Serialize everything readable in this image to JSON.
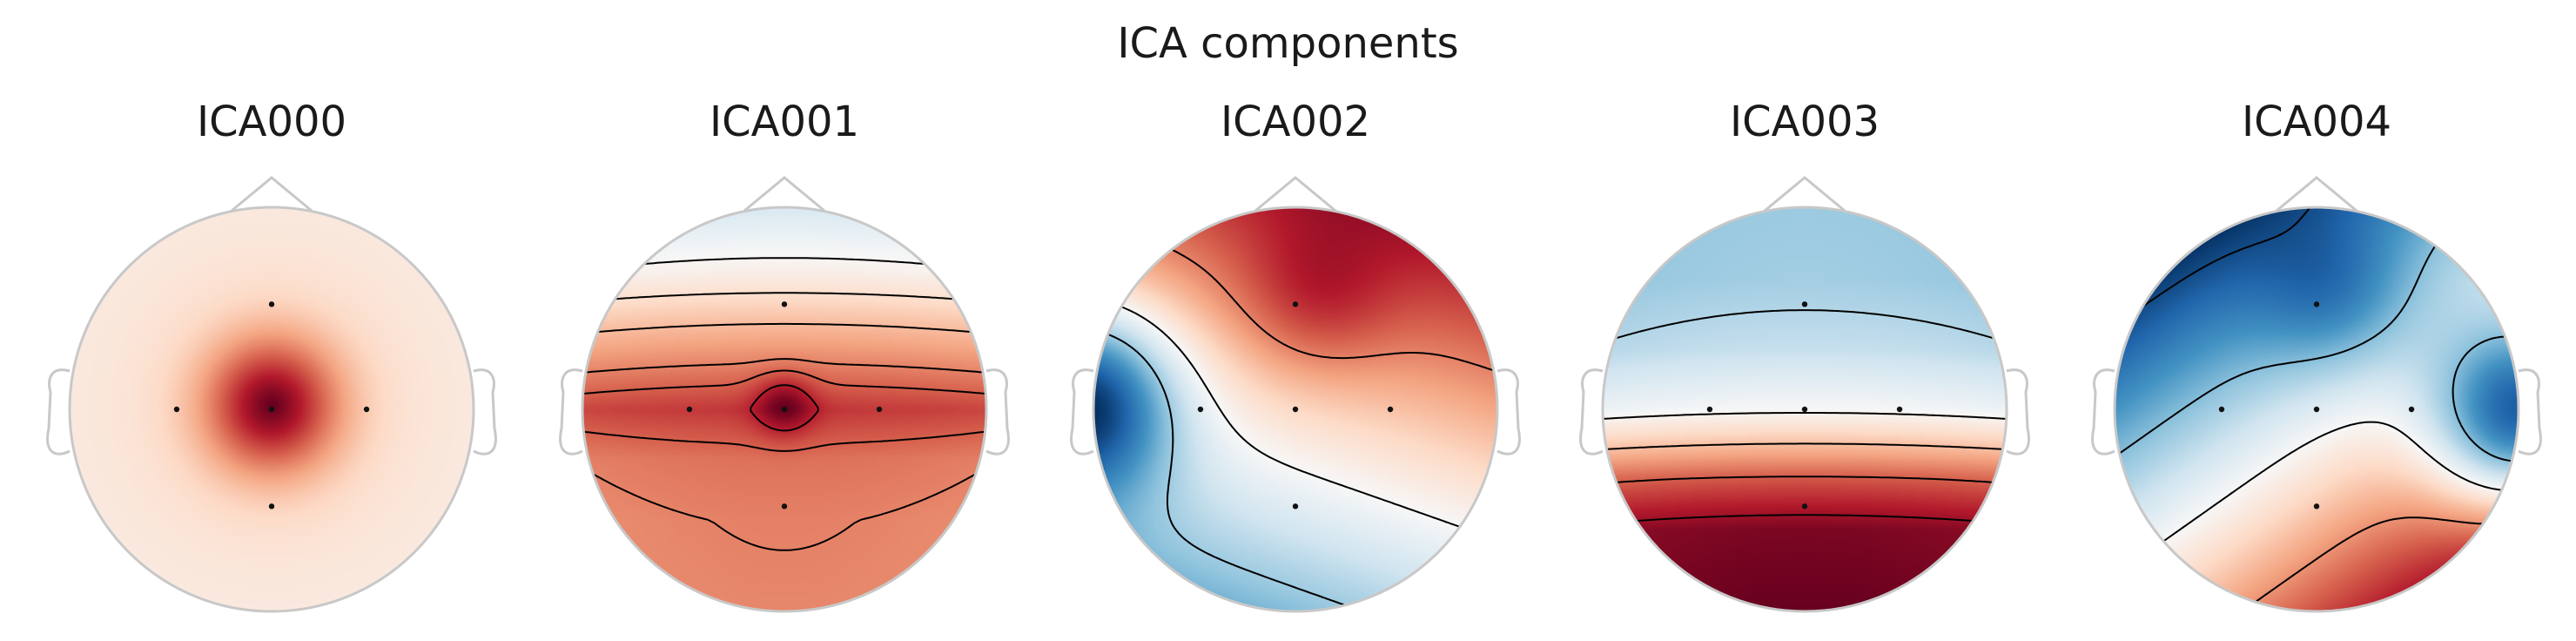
{
  "figure_title": "ICA components",
  "colors": {
    "negative": "#053061",
    "neutral": "#f7f7f7",
    "positive": "#67001f",
    "head_outline": "#c8c8c8",
    "contour": "#000000"
  },
  "colormap": "RdBu_r",
  "chart_data": {
    "type": "topomap",
    "title": "ICA components",
    "sensor_positions": [
      [
        0.0,
        0.52
      ],
      [
        -0.47,
        0.0
      ],
      [
        0.0,
        0.0
      ],
      [
        0.47,
        0.0
      ],
      [
        0.0,
        -0.48
      ]
    ],
    "components": [
      {
        "name": "ICA000",
        "kind": "point",
        "source": [
          0.0,
          0.02
        ],
        "strength": 5.0,
        "bias": 0.96,
        "contours_solid": [
          1.3,
          1.55,
          1.8,
          2.05,
          2.3
        ],
        "contours_dashed": []
      },
      {
        "name": "ICA001",
        "kind": "profile",
        "profile_y": [
          -1.0,
          -0.55,
          -0.25,
          0.0,
          0.22,
          0.45,
          0.68,
          1.0
        ],
        "profile_v": [
          0.58,
          0.6,
          0.65,
          0.85,
          0.6,
          0.35,
          0.08,
          -0.18
        ],
        "contours_solid": [
          0.02,
          0.17,
          0.32,
          0.5,
          0.6,
          0.78
        ],
        "contours_dashed": []
      },
      {
        "name": "ICA002",
        "kind": "linear",
        "coefficients": [
          0.85,
          0.3,
          0.25
        ],
        "bump_center": [
          -1.05,
          0.05
        ],
        "bump_amplitude": -1.4,
        "bump_width": 0.32,
        "contours_solid": [
          0.0,
          0.5,
          0.9
        ],
        "contours_dashed": [
          -0.5
        ]
      },
      {
        "name": "ICA003",
        "kind": "profile",
        "profile_y": [
          -1.0,
          -0.6,
          -0.35,
          -0.15,
          0.0,
          0.3,
          0.65,
          1.0
        ],
        "profile_v": [
          0.95,
          0.9,
          0.6,
          0.25,
          0.0,
          -0.22,
          -0.33,
          -0.35
        ],
        "contours_solid": [
          0.03,
          0.3,
          0.6,
          0.85
        ],
        "contours_dashed": [
          -0.28
        ]
      },
      {
        "name": "ICA004",
        "kind": "linear",
        "coefficients": [
          -0.85,
          0.6,
          -0.1
        ],
        "bump_center": [
          1.05,
          -0.05
        ],
        "bump_amplitude": -1.5,
        "bump_width": 0.33,
        "contours_solid": [
          0.0,
          0.45,
          0.9
        ],
        "contours_dashed": [
          -0.5,
          -1.05
        ]
      }
    ]
  }
}
